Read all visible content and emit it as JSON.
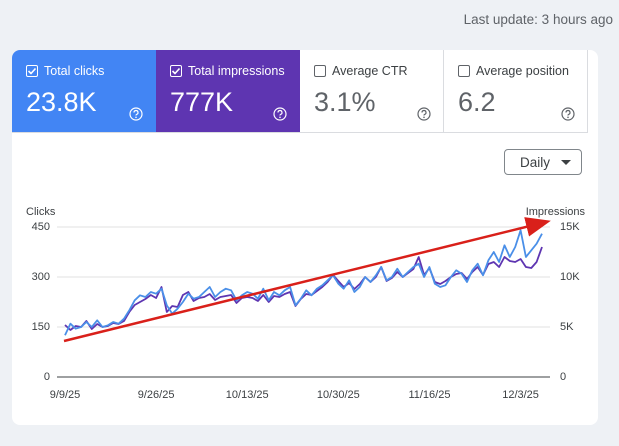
{
  "header": {
    "last_update": "Last update: 3 hours ago"
  },
  "metrics": [
    {
      "label": "Total clicks",
      "value": "23.8K",
      "checked": true,
      "color": "#4285f4"
    },
    {
      "label": "Total impressions",
      "value": "777K",
      "checked": true,
      "color": "#5e35b1"
    },
    {
      "label": "Average CTR",
      "value": "3.1%",
      "checked": false
    },
    {
      "label": "Average position",
      "value": "6.2",
      "checked": false
    }
  ],
  "dropdown": "Daily",
  "chart_data": {
    "type": "line",
    "categories": [
      "9/9/25",
      null,
      null,
      null,
      null,
      null,
      null,
      null,
      null,
      null,
      null,
      null,
      null,
      null,
      null,
      null,
      null,
      "9/26/25",
      null,
      null,
      null,
      null,
      null,
      null,
      null,
      null,
      null,
      null,
      null,
      null,
      null,
      null,
      null,
      null,
      "10/13/25",
      null,
      null,
      null,
      null,
      null,
      null,
      null,
      null,
      null,
      null,
      null,
      null,
      null,
      null,
      null,
      null,
      "10/30/25",
      null,
      null,
      null,
      null,
      null,
      null,
      null,
      null,
      null,
      null,
      null,
      null,
      null,
      null,
      null,
      null,
      "11/16/25",
      null,
      null,
      null,
      null,
      null,
      null,
      null,
      null,
      null,
      null,
      null,
      null,
      null,
      null,
      null,
      null,
      "12/3/25",
      null,
      null,
      null,
      null
    ],
    "ylabel": "Clicks",
    "y2label": "Impressions",
    "ylim": [
      0,
      450
    ],
    "yticks": [
      0,
      150,
      300,
      450
    ],
    "y2lim": [
      0,
      15000
    ],
    "y2ticks": [
      0,
      {
        "value": 5000,
        "label": "5K"
      },
      {
        "value": 10000,
        "label": "10K"
      },
      {
        "value": 15000,
        "label": "15K"
      }
    ],
    "grid": true,
    "series": [
      {
        "name": "Total clicks",
        "color": "#4a8fe8",
        "values": [
          125,
          160,
          145,
          150,
          165,
          150,
          170,
          150,
          155,
          165,
          160,
          175,
          200,
          230,
          245,
          240,
          255,
          250,
          265,
          215,
          190,
          205,
          225,
          250,
          235,
          240,
          255,
          270,
          240,
          255,
          265,
          260,
          230,
          245,
          255,
          250,
          235,
          265,
          230,
          255,
          245,
          260,
          270,
          215,
          235,
          260,
          245,
          265,
          275,
          290,
          305,
          280,
          265,
          290,
          255,
          270,
          300,
          285,
          305,
          330,
          290,
          300,
          325,
          300,
          315,
          330,
          340,
          300,
          330,
          280,
          270,
          275,
          300,
          320,
          310,
          285,
          320,
          340,
          305,
          350,
          375,
          345,
          395,
          360,
          390,
          440,
          360,
          380,
          400,
          430
        ]
      },
      {
        "name": "Total impressions",
        "color": "#5e35b1",
        "axis": "y2",
        "values": [
          5200,
          4700,
          5100,
          5000,
          5600,
          4800,
          5300,
          5000,
          5100,
          5400,
          5300,
          5600,
          6500,
          7200,
          7500,
          7800,
          8200,
          7900,
          9000,
          6500,
          7100,
          7000,
          8200,
          8500,
          7600,
          7900,
          8000,
          8300,
          7700,
          8000,
          8100,
          8200,
          7400,
          7900,
          8000,
          7900,
          7600,
          8200,
          7500,
          8100,
          8000,
          8300,
          8500,
          7100,
          7800,
          8300,
          8200,
          8600,
          9000,
          9500,
          10200,
          9600,
          9000,
          9400,
          8800,
          9300,
          10000,
          9500,
          10000,
          11000,
          9600,
          9900,
          10500,
          10000,
          10400,
          10800,
          12000,
          10200,
          10900,
          9500,
          9300,
          9600,
          10000,
          10300,
          10400,
          9800,
          10500,
          11000,
          10200,
          11300,
          11500,
          11000,
          12000,
          11600,
          11500,
          11800,
          11000,
          10900,
          11500,
          13000
        ]
      }
    ]
  }
}
